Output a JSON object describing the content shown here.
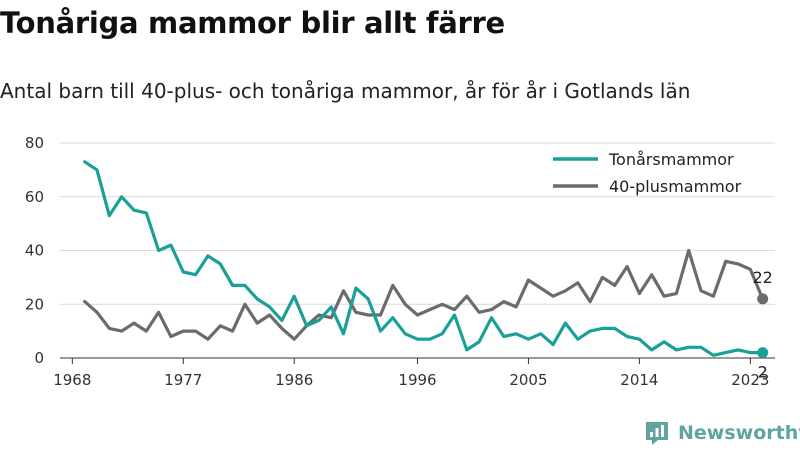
{
  "header": {
    "title": "Tonåriga mammor blir allt färre",
    "subtitle": "Antal barn till 40-plus- och tonåriga mammor, år för år i Gotlands län"
  },
  "brand": {
    "name": "Newsworthy"
  },
  "chart_data": {
    "type": "line",
    "title": "Tonåriga mammor blir allt färre",
    "subtitle": "Antal barn till 40-plus- och tonåriga mammor, år för år i Gotlands län",
    "x_ticks": [
      1968,
      1977,
      1986,
      1996,
      2005,
      2014,
      2023
    ],
    "x_tick_labels": [
      "1968",
      "1977",
      "1986",
      "1996",
      "2005",
      "2014",
      "2023"
    ],
    "xlim": [
      1967,
      2025
    ],
    "y_ticks": [
      0,
      20,
      40,
      60,
      80
    ],
    "ylim": [
      0,
      80
    ],
    "grid": "horizontal",
    "legend_position": "top-right",
    "x": [
      1969,
      1970,
      1971,
      1972,
      1973,
      1974,
      1975,
      1976,
      1977,
      1978,
      1979,
      1980,
      1981,
      1982,
      1983,
      1984,
      1985,
      1986,
      1987,
      1988,
      1989,
      1990,
      1991,
      1992,
      1993,
      1994,
      1995,
      1996,
      1997,
      1998,
      1999,
      2000,
      2001,
      2002,
      2003,
      2004,
      2005,
      2006,
      2007,
      2008,
      2009,
      2010,
      2011,
      2012,
      2013,
      2014,
      2015,
      2016,
      2017,
      2018,
      2019,
      2020,
      2021,
      2022,
      2023,
      2024
    ],
    "series": [
      {
        "name": "Tonårsmammor",
        "color": "#19a097",
        "values": [
          73,
          70,
          53,
          60,
          55,
          54,
          40,
          42,
          32,
          31,
          38,
          35,
          27,
          27,
          22,
          19,
          14,
          23,
          12,
          14,
          19,
          9,
          26,
          22,
          10,
          15,
          9,
          7,
          7,
          9,
          16,
          3,
          6,
          15,
          8,
          9,
          7,
          9,
          5,
          13,
          7,
          10,
          11,
          11,
          8,
          7,
          3,
          6,
          3,
          4,
          4,
          1,
          2,
          3,
          2,
          2
        ],
        "end_label": "2"
      },
      {
        "name": "40-plusmammor",
        "color": "#6b6b6e",
        "values": [
          21,
          17,
          11,
          10,
          13,
          10,
          17,
          8,
          10,
          10,
          7,
          12,
          10,
          20,
          13,
          16,
          11,
          7,
          12,
          16,
          15,
          25,
          17,
          16,
          16,
          27,
          20,
          16,
          18,
          20,
          18,
          23,
          17,
          18,
          21,
          19,
          29,
          26,
          23,
          25,
          28,
          21,
          30,
          27,
          34,
          24,
          31,
          23,
          24,
          40,
          25,
          23,
          36,
          35,
          33,
          22
        ],
        "end_label": "22"
      }
    ]
  }
}
